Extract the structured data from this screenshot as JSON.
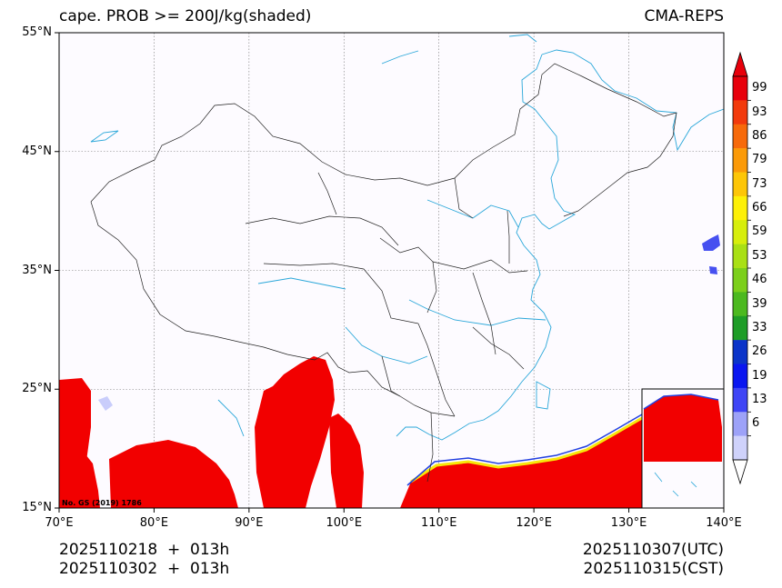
{
  "map": {
    "title_left": "cape. PROB >= 200J/kg(shaded)",
    "title_right": "CMA-REPS",
    "watermark": "No. GS (2019) 1786",
    "lat_labels": [
      "55°N",
      "45°N",
      "35°N",
      "25°N",
      "15°N"
    ],
    "lon_labels": [
      "70°E",
      "80°E",
      "90°E",
      "100°E",
      "110°E",
      "120°E",
      "130°E",
      "140°E"
    ],
    "lat_values": [
      55,
      45,
      35,
      25,
      15
    ],
    "lon_values": [
      70,
      80,
      90,
      100,
      110,
      120,
      130,
      140
    ],
    "colors": {
      "shade_high": "#f20000",
      "river": "#2aa7d9",
      "border": "#222222",
      "background": "#fdfbff"
    }
  },
  "footer": {
    "init_utc": "2025110218  +  013h",
    "init_cst": "2025110302  +  013h",
    "valid_utc": "2025110307(UTC)",
    "valid_cst": "2025110315(CST)"
  },
  "colorbar": {
    "labels": [
      "99",
      "93",
      "86",
      "79",
      "73",
      "66",
      "59",
      "53",
      "46",
      "39",
      "33",
      "26",
      "19",
      "13",
      "6"
    ],
    "colors": [
      "#e8000b",
      "#f23a0c",
      "#f76a0a",
      "#fb9a08",
      "#fdc607",
      "#fdf007",
      "#d7ee0b",
      "#a9e014",
      "#7ccf1a",
      "#4cb91f",
      "#1e9d27",
      "#0b34c9",
      "#0a16f0",
      "#3f45f5",
      "#9da2f8",
      "#cfd2fb"
    ]
  }
}
